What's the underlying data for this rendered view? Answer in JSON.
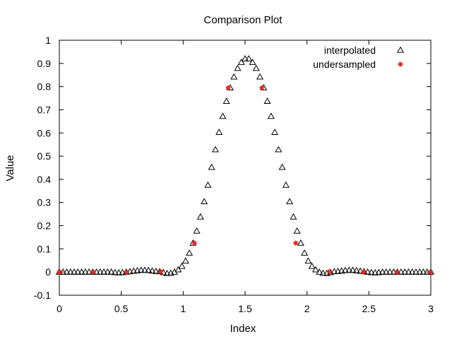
{
  "chart_data": {
    "type": "scatter",
    "title": "Comparison Plot",
    "xlabel": "Index",
    "ylabel": "Value",
    "xlim": [
      0,
      3
    ],
    "ylim": [
      -0.1,
      1
    ],
    "xticks": [
      0,
      0.5,
      1,
      1.5,
      2,
      2.5,
      3
    ],
    "xtick_labels": [
      "0",
      "0.5",
      "1",
      "1.5",
      "2",
      "2.5",
      "3"
    ],
    "yticks": [
      -0.1,
      0,
      0.1,
      0.2,
      0.3,
      0.4,
      0.5,
      0.6,
      0.7,
      0.8,
      0.9,
      1
    ],
    "ytick_labels": [
      "-0.1",
      "0",
      "0.1",
      "0.2",
      "0.3",
      "0.4",
      "0.5",
      "0.6",
      "0.7",
      "0.8",
      "0.9",
      "1"
    ],
    "grid": false,
    "legend": "top-right",
    "series": [
      {
        "name": "interpolated",
        "marker": "open-triangle",
        "color": "#000000",
        "x": [
          0,
          0.03,
          0.06,
          0.09,
          0.12,
          0.15,
          0.18,
          0.21,
          0.24,
          0.27,
          0.3,
          0.33,
          0.36,
          0.39,
          0.42,
          0.45,
          0.48,
          0.51,
          0.54,
          0.57,
          0.6,
          0.63,
          0.66,
          0.69,
          0.72,
          0.75,
          0.78,
          0.81,
          0.84,
          0.87,
          0.9,
          0.93,
          0.96,
          0.99,
          1.02,
          1.05,
          1.08,
          1.11,
          1.14,
          1.17,
          1.2,
          1.23,
          1.26,
          1.29,
          1.32,
          1.35,
          1.38,
          1.41,
          1.44,
          1.47,
          1.5,
          1.53,
          1.56,
          1.59,
          1.62,
          1.65,
          1.68,
          1.71,
          1.74,
          1.77,
          1.8,
          1.83,
          1.86,
          1.89,
          1.92,
          1.95,
          1.98,
          2.01,
          2.04,
          2.07,
          2.1,
          2.13,
          2.16,
          2.19,
          2.22,
          2.25,
          2.28,
          2.31,
          2.34,
          2.37,
          2.4,
          2.43,
          2.46,
          2.49,
          2.52,
          2.55,
          2.58,
          2.61,
          2.64,
          2.67,
          2.7,
          2.73,
          2.76,
          2.79,
          2.82,
          2.85,
          2.88,
          2.91,
          2.94,
          2.97,
          3
        ],
        "y": [
          0,
          0,
          0,
          0,
          0,
          0,
          0,
          0,
          0,
          0,
          0,
          0,
          0,
          0,
          0,
          -0.002,
          -0.003,
          -0.002,
          0,
          0.002,
          0.004,
          0.006,
          0.008,
          0.008,
          0.007,
          0.005,
          0.003,
          0.002,
          -0.002,
          -0.006,
          -0.005,
          0,
          0.01,
          0.025,
          0.048,
          0.082,
          0.125,
          0.177,
          0.238,
          0.304,
          0.375,
          0.452,
          0.528,
          0.603,
          0.672,
          0.737,
          0.795,
          0.842,
          0.879,
          0.905,
          0.92,
          0.92,
          0.905,
          0.879,
          0.842,
          0.795,
          0.737,
          0.672,
          0.603,
          0.528,
          0.452,
          0.375,
          0.304,
          0.238,
          0.177,
          0.125,
          0.082,
          0.048,
          0.025,
          0.01,
          0,
          -0.005,
          -0.006,
          -0.002,
          0.002,
          0.003,
          0.005,
          0.007,
          0.008,
          0.008,
          0.006,
          0.004,
          0.002,
          0,
          -0.002,
          -0.003,
          -0.002,
          0,
          0,
          0,
          0,
          0,
          0,
          0,
          0,
          0,
          0,
          0,
          0,
          0,
          0
        ]
      },
      {
        "name": "undersampled",
        "marker": "filled-star",
        "color": "#e8281e",
        "x": [
          0,
          0.273,
          0.545,
          0.818,
          1.091,
          1.364,
          1.636,
          1.909,
          2.182,
          2.455,
          2.727,
          3
        ],
        "y": [
          0,
          0,
          0,
          0.002,
          0.125,
          0.795,
          0.795,
          0.125,
          0.002,
          0,
          0,
          0
        ]
      }
    ]
  }
}
